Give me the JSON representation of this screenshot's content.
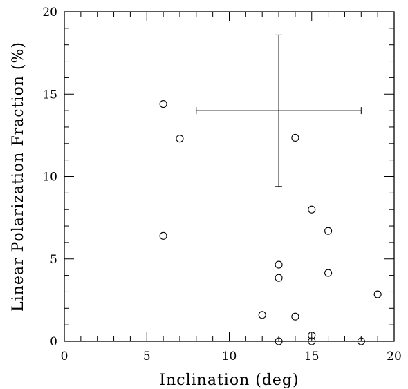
{
  "chart_data": {
    "type": "scatter",
    "xlabel": "Inclination (deg)",
    "ylabel": "Linear Polarization Fraction (%)",
    "xlim": [
      0,
      20
    ],
    "ylim": [
      0,
      20
    ],
    "x_ticks": [
      "0",
      "5",
      "10",
      "15",
      "20"
    ],
    "y_ticks": [
      "0",
      "5",
      "10",
      "15",
      "20"
    ],
    "marker": "open-circle",
    "grid": false,
    "points": [
      {
        "x": 6,
        "y": 14.4
      },
      {
        "x": 7,
        "y": 12.3
      },
      {
        "x": 14,
        "y": 12.35
      },
      {
        "x": 15,
        "y": 8.0
      },
      {
        "x": 16,
        "y": 6.7
      },
      {
        "x": 6,
        "y": 6.4
      },
      {
        "x": 13,
        "y": 4.65
      },
      {
        "x": 16,
        "y": 4.15
      },
      {
        "x": 13,
        "y": 3.85
      },
      {
        "x": 19,
        "y": 2.85
      },
      {
        "x": 12,
        "y": 1.6
      },
      {
        "x": 14,
        "y": 1.5
      },
      {
        "x": 15,
        "y": 0.35
      },
      {
        "x": 13,
        "y": 0.0
      },
      {
        "x": 15,
        "y": 0.0
      },
      {
        "x": 18,
        "y": 0.0
      }
    ],
    "representative_error": {
      "x": 13,
      "y": 14.0,
      "x_range": [
        8,
        18
      ],
      "y_range": [
        9.4,
        18.6
      ]
    }
  }
}
